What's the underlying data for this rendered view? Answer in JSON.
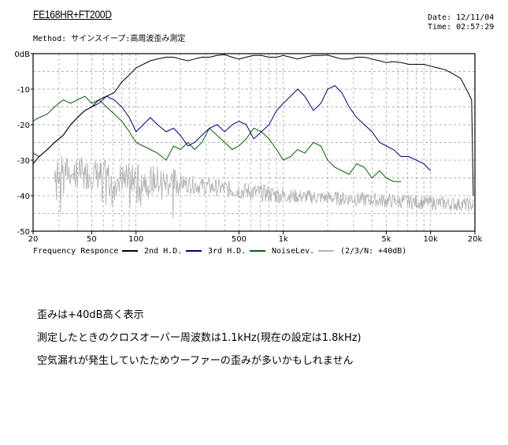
{
  "header": {
    "title": "FE168HR+FT200D",
    "method_label": "Method:",
    "method_value": "サインスイープ:高周波歪み測定",
    "date_label": "Date:",
    "date_value": "12/11/04",
    "time_label": "Time:",
    "time_value": "02:57:29"
  },
  "chart_data": {
    "type": "line",
    "xscale": "log",
    "xlim": [
      20,
      20000
    ],
    "ylim": [
      -50,
      0
    ],
    "grid": true,
    "x_ticks": [
      20,
      50,
      100,
      500,
      1000,
      5000,
      10000,
      20000
    ],
    "x_tick_labels": [
      "20",
      "50",
      "100",
      "500",
      "1k",
      "5k",
      "10k",
      "20k"
    ],
    "y_ticks": [
      0,
      -10,
      -20,
      -30,
      -40,
      -50
    ],
    "y_tick_labels": [
      "0dB",
      "-10",
      "-20",
      "-30",
      "-40",
      "-50"
    ],
    "legend": [
      {
        "label": "Frequency Responce",
        "color": "#000000"
      },
      {
        "label": "2nd H.D.",
        "color": "#000080"
      },
      {
        "label": "3rd H.D.",
        "color": "#006400"
      },
      {
        "label": "NoiseLev.",
        "color": "#b4b4b4"
      }
    ],
    "legend_note": "(2/3/N: +40dB)",
    "series": [
      {
        "name": "Frequency Responce",
        "color": "#000000",
        "x": [
          20,
          22,
          25,
          28,
          32,
          36,
          40,
          45,
          50,
          56,
          63,
          71,
          80,
          90,
          100,
          112,
          125,
          140,
          160,
          180,
          200,
          225,
          250,
          280,
          315,
          355,
          400,
          450,
          500,
          560,
          630,
          710,
          800,
          900,
          1000,
          1120,
          1250,
          1400,
          1600,
          1800,
          2000,
          2240,
          2500,
          2800,
          3150,
          3550,
          4000,
          4500,
          5000,
          5600,
          6300,
          7100,
          8000,
          9000,
          10000,
          11200,
          12500,
          14000,
          16000,
          17000,
          18000,
          19000,
          19500
        ],
        "y": [
          -31,
          -29,
          -27,
          -25,
          -23,
          -20,
          -18,
          -16,
          -15,
          -13,
          -12,
          -11,
          -8,
          -6,
          -4,
          -3,
          -2,
          -1.5,
          -1,
          -1,
          -1.5,
          -2,
          -1.5,
          -1,
          -1,
          -0.5,
          -0.3,
          -1,
          -1.5,
          -1,
          -0.5,
          -0.5,
          -1,
          -1,
          -0.5,
          -1,
          -1.5,
          -1,
          -0.5,
          -0.5,
          -0.4,
          -1,
          -1.5,
          -1.5,
          -1,
          -1,
          -1.5,
          -2,
          -2.5,
          -2.3,
          -2.5,
          -3,
          -3,
          -3,
          -3.5,
          -4,
          -4.5,
          -5.5,
          -7,
          -9,
          -11,
          -13,
          -40
        ]
      },
      {
        "name": "2nd H.D.",
        "color": "#000080",
        "x": [
          20,
          22,
          25,
          28,
          32,
          36,
          40,
          45,
          50,
          56,
          63,
          71,
          80,
          90,
          100,
          112,
          125,
          140,
          160,
          180,
          200,
          225,
          250,
          280,
          315,
          355,
          400,
          450,
          500,
          560,
          630,
          710,
          800,
          900,
          1000,
          1120,
          1250,
          1400,
          1600,
          1800,
          2000,
          2240,
          2500,
          2800,
          3150,
          3550,
          4000,
          4500,
          5000,
          5600,
          6300,
          7100,
          8000,
          9000,
          10000
        ],
        "y": [
          -28,
          -29,
          -27,
          -25,
          -23,
          -20,
          -18,
          -16,
          -15,
          -14,
          -12,
          -13,
          -15,
          -18,
          -22,
          -20,
          -18,
          -20,
          -22,
          -21,
          -23,
          -26,
          -25,
          -23,
          -21,
          -20,
          -22,
          -20,
          -19,
          -20,
          -24,
          -22,
          -20,
          -16,
          -14,
          -12,
          -10,
          -12,
          -16,
          -14,
          -10,
          -9,
          -11,
          -15,
          -18,
          -20,
          -22,
          -25,
          -26,
          -27,
          -29,
          -29,
          -30,
          -31,
          -33
        ]
      },
      {
        "name": "3rd H.D.",
        "color": "#006400",
        "x": [
          20,
          22,
          25,
          28,
          32,
          36,
          40,
          45,
          50,
          56,
          63,
          71,
          80,
          90,
          100,
          112,
          125,
          140,
          160,
          180,
          200,
          225,
          250,
          280,
          315,
          355,
          400,
          450,
          500,
          560,
          630,
          710,
          800,
          900,
          1000,
          1120,
          1250,
          1400,
          1600,
          1800,
          2000,
          2240,
          2500,
          2800,
          3150,
          3550,
          4000,
          4500,
          5000,
          5600,
          6300
        ],
        "y": [
          -19,
          -18,
          -17,
          -15,
          -13,
          -14,
          -13,
          -12,
          -14,
          -13,
          -15,
          -17,
          -19,
          -22,
          -25,
          -26,
          -27,
          -28,
          -30,
          -26,
          -27,
          -25,
          -27,
          -25,
          -21,
          -23,
          -25,
          -27,
          -26,
          -24,
          -21,
          -22,
          -24,
          -27,
          -30,
          -29,
          -27,
          -28,
          -25,
          -26,
          -30,
          -32,
          -33,
          -34,
          -31,
          -32,
          -35,
          -33,
          -35,
          -36,
          -36
        ]
      }
    ]
  },
  "notes": [
    "歪みは+40dB高く表示",
    "測定したときのクロスオーバー周波数は1.1kHz(現在の設定は1.8kHz)",
    "空気漏れが発生していたためウーファーの歪みが多いかもしれません"
  ]
}
